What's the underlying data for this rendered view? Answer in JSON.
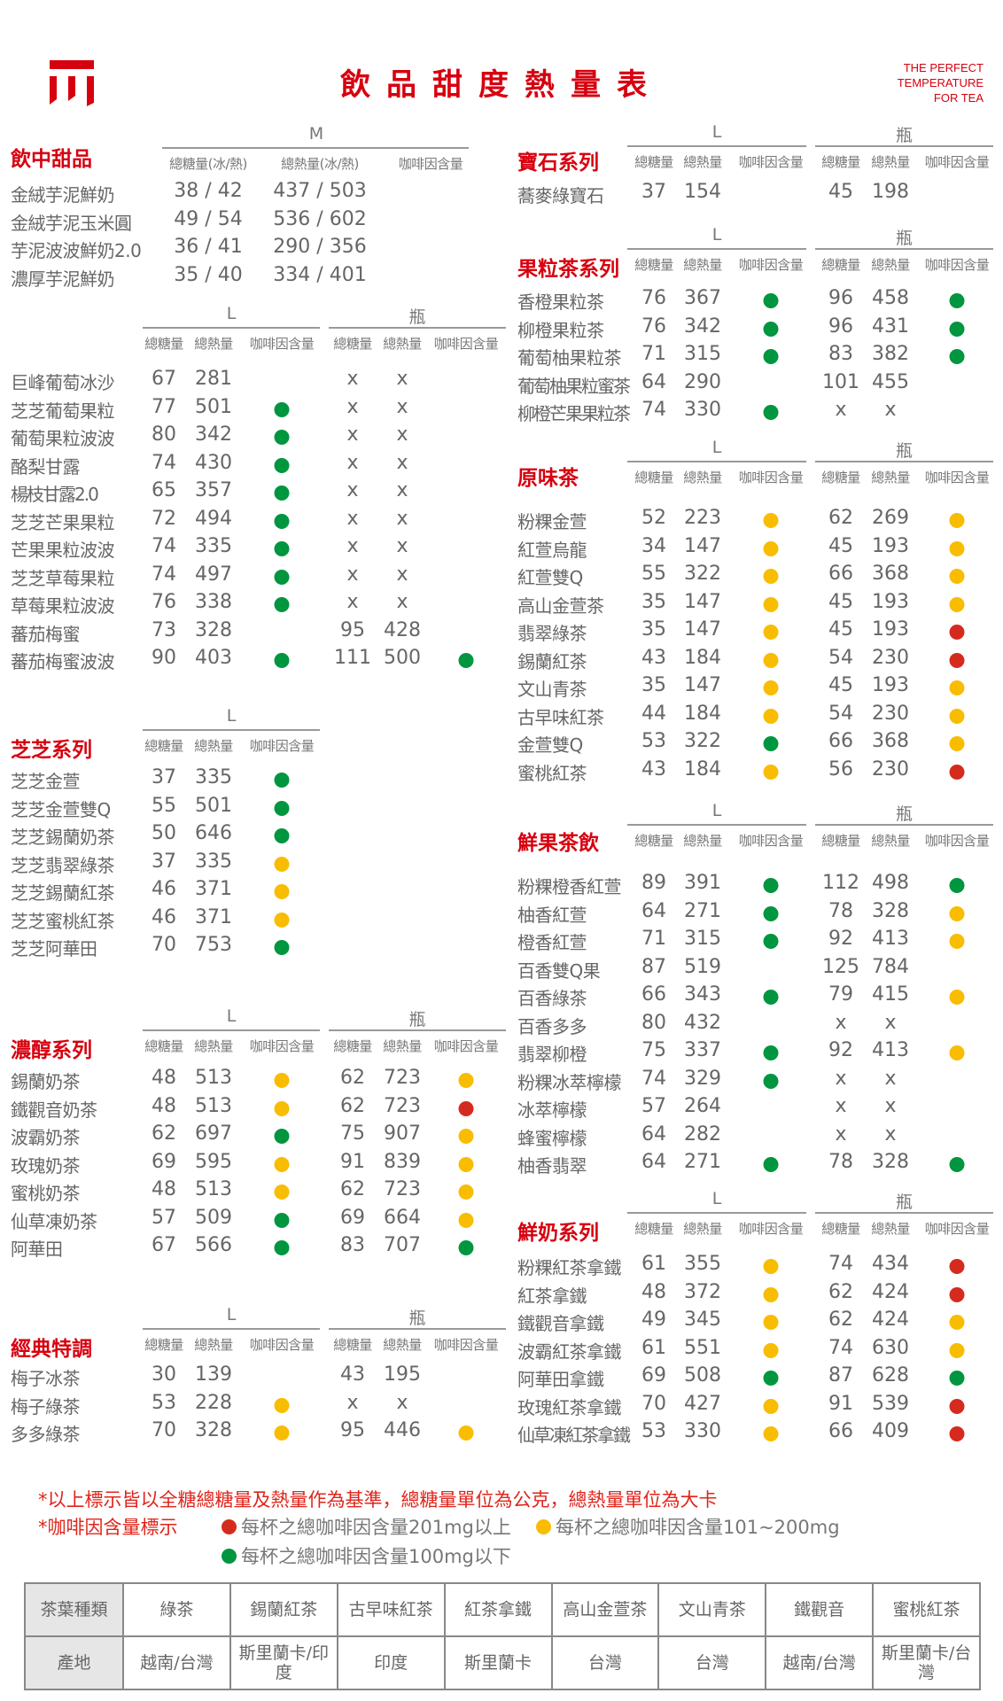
{
  "header": {
    "title": "飲品甜度熱量表",
    "tagline": [
      "THE PERFECT",
      "TEMPERATURE",
      "FOR TEA"
    ],
    "brand_color": "#d7000f"
  },
  "caffeine_colors": {
    "green": "#00963f",
    "yellow": "#f8bd00",
    "red": "#d52b1e"
  },
  "sub_headers": {
    "sugar": "總糖量",
    "calorie": "總熱量",
    "caffeine": "咖啡因含量"
  },
  "dessert": {
    "title": "飲中甜品",
    "size_label": "M",
    "headers": [
      "總糖量(冰/熱)",
      "總熱量(冰/熱)",
      "咖啡因含量"
    ],
    "rows": [
      {
        "name": "金絨芋泥鮮奶",
        "sugar": "38 / 42",
        "calorie": "437 / 503"
      },
      {
        "name": "金絨芋泥玉米圓",
        "sugar": "49 / 54",
        "calorie": "536 / 602"
      },
      {
        "name": "芋泥波波鮮奶2.0",
        "sugar": "36 / 41",
        "calorie": "290 / 356"
      },
      {
        "name": "濃厚芋泥鮮奶",
        "sugar": "35 / 40",
        "calorie": "334 / 401"
      }
    ]
  },
  "sections": [
    {
      "title": "",
      "sizes": [
        "L",
        "瓶"
      ],
      "rows": [
        {
          "name": "巨峰葡萄冰沙",
          "L": [
            "67",
            "281",
            ""
          ],
          "B": [
            "x",
            "x",
            ""
          ]
        },
        {
          "name": "芝芝葡萄果粒",
          "L": [
            "77",
            "501",
            "green"
          ],
          "B": [
            "x",
            "x",
            ""
          ]
        },
        {
          "name": "葡萄果粒波波",
          "L": [
            "80",
            "342",
            "green"
          ],
          "B": [
            "x",
            "x",
            ""
          ]
        },
        {
          "name": "酪梨甘露",
          "L": [
            "74",
            "430",
            "green"
          ],
          "B": [
            "x",
            "x",
            ""
          ]
        },
        {
          "name": "楊枝甘露2.0",
          "L": [
            "65",
            "357",
            "green"
          ],
          "B": [
            "x",
            "x",
            ""
          ]
        },
        {
          "name": "芝芝芒果果粒",
          "L": [
            "72",
            "494",
            "green"
          ],
          "B": [
            "x",
            "x",
            ""
          ]
        },
        {
          "name": "芒果果粒波波",
          "L": [
            "74",
            "335",
            "green"
          ],
          "B": [
            "x",
            "x",
            ""
          ]
        },
        {
          "name": "芝芝草莓果粒",
          "L": [
            "74",
            "497",
            "green"
          ],
          "B": [
            "x",
            "x",
            ""
          ]
        },
        {
          "name": "草莓果粒波波",
          "L": [
            "76",
            "338",
            "green"
          ],
          "B": [
            "x",
            "x",
            ""
          ]
        },
        {
          "name": "蕃茄梅蜜",
          "L": [
            "73",
            "328",
            ""
          ],
          "B": [
            "95",
            "428",
            ""
          ]
        },
        {
          "name": "蕃茄梅蜜波波",
          "L": [
            "90",
            "403",
            "green"
          ],
          "B": [
            "111",
            "500",
            "green"
          ]
        }
      ]
    },
    {
      "title": "芝芝系列",
      "sizes": [
        "L"
      ],
      "rows": [
        {
          "name": "芝芝金萱",
          "L": [
            "37",
            "335",
            "green"
          ]
        },
        {
          "name": "芝芝金萱雙Q",
          "L": [
            "55",
            "501",
            "green"
          ]
        },
        {
          "name": "芝芝錫蘭奶茶",
          "L": [
            "50",
            "646",
            "green"
          ]
        },
        {
          "name": "芝芝翡翠綠茶",
          "L": [
            "37",
            "335",
            "yellow"
          ]
        },
        {
          "name": "芝芝錫蘭紅茶",
          "L": [
            "46",
            "371",
            "yellow"
          ]
        },
        {
          "name": "芝芝蜜桃紅茶",
          "L": [
            "46",
            "371",
            "yellow"
          ]
        },
        {
          "name": "芝芝阿華田",
          "L": [
            "70",
            "753",
            "green"
          ]
        }
      ]
    },
    {
      "title": "濃醇系列",
      "sizes": [
        "L",
        "瓶"
      ],
      "rows": [
        {
          "name": "錫蘭奶茶",
          "L": [
            "48",
            "513",
            "yellow"
          ],
          "B": [
            "62",
            "723",
            "yellow"
          ]
        },
        {
          "name": "鐵觀音奶茶",
          "L": [
            "48",
            "513",
            "yellow"
          ],
          "B": [
            "62",
            "723",
            "red"
          ]
        },
        {
          "name": "波霸奶茶",
          "L": [
            "62",
            "697",
            "green"
          ],
          "B": [
            "75",
            "907",
            "yellow"
          ]
        },
        {
          "name": "玫瑰奶茶",
          "L": [
            "69",
            "595",
            "yellow"
          ],
          "B": [
            "91",
            "839",
            "yellow"
          ]
        },
        {
          "name": "蜜桃奶茶",
          "L": [
            "48",
            "513",
            "yellow"
          ],
          "B": [
            "62",
            "723",
            "yellow"
          ]
        },
        {
          "name": "仙草凍奶茶",
          "L": [
            "57",
            "509",
            "green"
          ],
          "B": [
            "69",
            "664",
            "yellow"
          ]
        },
        {
          "name": "阿華田",
          "L": [
            "67",
            "566",
            "green"
          ],
          "B": [
            "83",
            "707",
            "green"
          ]
        }
      ]
    },
    {
      "title": "經典特調",
      "sizes": [
        "L",
        "瓶"
      ],
      "rows": [
        {
          "name": "梅子冰茶",
          "L": [
            "30",
            "139",
            ""
          ],
          "B": [
            "43",
            "195",
            ""
          ]
        },
        {
          "name": "梅子綠茶",
          "L": [
            "53",
            "228",
            "yellow"
          ],
          "B": [
            "x",
            "x",
            ""
          ]
        },
        {
          "name": "多多綠茶",
          "L": [
            "70",
            "328",
            "yellow"
          ],
          "B": [
            "95",
            "446",
            "yellow"
          ]
        }
      ]
    },
    {
      "title": "寶石系列",
      "sizes": [
        "L",
        "瓶"
      ],
      "rows": [
        {
          "name": "蕎麥綠寶石",
          "L": [
            "37",
            "154",
            ""
          ],
          "B": [
            "45",
            "198",
            ""
          ]
        }
      ]
    },
    {
      "title": "果粒茶系列",
      "sizes": [
        "L",
        "瓶"
      ],
      "rows": [
        {
          "name": "香橙果粒茶",
          "L": [
            "76",
            "367",
            "green"
          ],
          "B": [
            "96",
            "458",
            "green"
          ]
        },
        {
          "name": "柳橙果粒茶",
          "L": [
            "76",
            "342",
            "green"
          ],
          "B": [
            "96",
            "431",
            "green"
          ]
        },
        {
          "name": "葡萄柚果粒茶",
          "L": [
            "71",
            "315",
            "green"
          ],
          "B": [
            "83",
            "382",
            "green"
          ]
        },
        {
          "name": "葡萄柚果粒蜜茶",
          "L": [
            "64",
            "290",
            ""
          ],
          "B": [
            "101",
            "455",
            ""
          ]
        },
        {
          "name": "柳橙芒果果粒茶",
          "L": [
            "74",
            "330",
            "green"
          ],
          "B": [
            "x",
            "x",
            ""
          ]
        }
      ]
    },
    {
      "title": "原味茶",
      "sizes": [
        "L",
        "瓶"
      ],
      "rows": [
        {
          "name": "粉粿金萱",
          "L": [
            "52",
            "223",
            "yellow"
          ],
          "B": [
            "62",
            "269",
            "yellow"
          ]
        },
        {
          "name": "紅萱烏龍",
          "L": [
            "34",
            "147",
            "yellow"
          ],
          "B": [
            "45",
            "193",
            "yellow"
          ]
        },
        {
          "name": "紅萱雙Q",
          "L": [
            "55",
            "322",
            "yellow"
          ],
          "B": [
            "66",
            "368",
            "yellow"
          ]
        },
        {
          "name": "高山金萱茶",
          "L": [
            "35",
            "147",
            "yellow"
          ],
          "B": [
            "45",
            "193",
            "yellow"
          ]
        },
        {
          "name": "翡翠綠茶",
          "L": [
            "35",
            "147",
            "yellow"
          ],
          "B": [
            "45",
            "193",
            "red"
          ]
        },
        {
          "name": "錫蘭紅茶",
          "L": [
            "43",
            "184",
            "yellow"
          ],
          "B": [
            "54",
            "230",
            "red"
          ]
        },
        {
          "name": "文山青茶",
          "L": [
            "35",
            "147",
            "yellow"
          ],
          "B": [
            "45",
            "193",
            "yellow"
          ]
        },
        {
          "name": "古早味紅茶",
          "L": [
            "44",
            "184",
            "yellow"
          ],
          "B": [
            "54",
            "230",
            "yellow"
          ]
        },
        {
          "name": "金萱雙Q",
          "L": [
            "53",
            "322",
            "green"
          ],
          "B": [
            "66",
            "368",
            "yellow"
          ]
        },
        {
          "name": "蜜桃紅茶",
          "L": [
            "43",
            "184",
            "yellow"
          ],
          "B": [
            "56",
            "230",
            "red"
          ]
        }
      ]
    },
    {
      "title": "鮮果茶飲",
      "sizes": [
        "L",
        "瓶"
      ],
      "rows": [
        {
          "name": "粉粿橙香紅萱",
          "L": [
            "89",
            "391",
            "green"
          ],
          "B": [
            "112",
            "498",
            "green"
          ]
        },
        {
          "name": "柚香紅萱",
          "L": [
            "64",
            "271",
            "green"
          ],
          "B": [
            "78",
            "328",
            "yellow"
          ]
        },
        {
          "name": "橙香紅萱",
          "L": [
            "71",
            "315",
            "green"
          ],
          "B": [
            "92",
            "413",
            "yellow"
          ]
        },
        {
          "name": "百香雙Q果",
          "L": [
            "87",
            "519",
            ""
          ],
          "B": [
            "125",
            "784",
            ""
          ]
        },
        {
          "name": "百香綠茶",
          "L": [
            "66",
            "343",
            "green"
          ],
          "B": [
            "79",
            "415",
            "yellow"
          ]
        },
        {
          "name": "百香多多",
          "L": [
            "80",
            "432",
            ""
          ],
          "B": [
            "x",
            "x",
            ""
          ]
        },
        {
          "name": "翡翠柳橙",
          "L": [
            "75",
            "337",
            "green"
          ],
          "B": [
            "92",
            "413",
            "yellow"
          ]
        },
        {
          "name": "粉粿冰萃檸檬",
          "L": [
            "74",
            "329",
            "green"
          ],
          "B": [
            "x",
            "x",
            ""
          ]
        },
        {
          "name": "冰萃檸檬",
          "L": [
            "57",
            "264",
            ""
          ],
          "B": [
            "x",
            "x",
            ""
          ]
        },
        {
          "name": "蜂蜜檸檬",
          "L": [
            "64",
            "282",
            ""
          ],
          "B": [
            "x",
            "x",
            ""
          ]
        },
        {
          "name": "柚香翡翠",
          "L": [
            "64",
            "271",
            "green"
          ],
          "B": [
            "78",
            "328",
            "green"
          ]
        }
      ]
    },
    {
      "title": "鮮奶系列",
      "sizes": [
        "L",
        "瓶"
      ],
      "rows": [
        {
          "name": "粉粿紅茶拿鐵",
          "L": [
            "61",
            "355",
            "yellow"
          ],
          "B": [
            "74",
            "434",
            "red"
          ]
        },
        {
          "name": "紅茶拿鐵",
          "L": [
            "48",
            "372",
            "yellow"
          ],
          "B": [
            "62",
            "424",
            "red"
          ]
        },
        {
          "name": "鐵觀音拿鐵",
          "L": [
            "49",
            "345",
            "yellow"
          ],
          "B": [
            "62",
            "424",
            "yellow"
          ]
        },
        {
          "name": "波霸紅茶拿鐵",
          "L": [
            "61",
            "551",
            "yellow"
          ],
          "B": [
            "74",
            "630",
            "yellow"
          ]
        },
        {
          "name": "阿華田拿鐵",
          "L": [
            "69",
            "508",
            "green"
          ],
          "B": [
            "87",
            "628",
            "green"
          ]
        },
        {
          "name": "玫瑰紅茶拿鐵",
          "L": [
            "70",
            "427",
            "yellow"
          ],
          "B": [
            "91",
            "539",
            "red"
          ]
        },
        {
          "name": "仙草凍紅茶拿鐵",
          "L": [
            "53",
            "330",
            "yellow"
          ],
          "B": [
            "66",
            "409",
            "red"
          ]
        }
      ]
    }
  ],
  "notes": {
    "line1": "*以上標示皆以全糖總糖量及熱量作為基準，總糖量單位為公克，總熱量單位為大卡",
    "caffeine_label": "*咖啡因含量標示",
    "legend": [
      {
        "color": "red",
        "text": "每杯之總咖啡因含量201mg以上"
      },
      {
        "color": "yellow",
        "text": "每杯之總咖啡因含量101~200mg"
      },
      {
        "color": "green",
        "text": "每杯之總咖啡因含量100mg以下"
      }
    ]
  },
  "origin_table": {
    "row1_header": "茶葉種類",
    "row2_header": "產地",
    "teas": [
      "綠茶",
      "錫蘭紅茶",
      "古早味紅茶",
      "紅茶拿鐵",
      "高山金萱茶",
      "文山青茶",
      "鐵觀音",
      "蜜桃紅茶"
    ],
    "origins": [
      "越南/台灣",
      "斯里蘭卡/印度",
      "印度",
      "斯里蘭卡",
      "台灣",
      "台灣",
      "越南/台灣",
      "斯里蘭卡/台灣"
    ]
  }
}
